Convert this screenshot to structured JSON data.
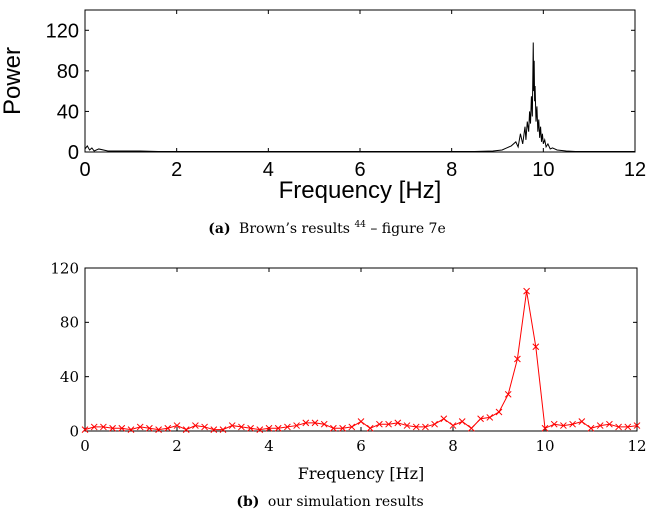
{
  "chart_data": [
    {
      "type": "line",
      "ylabel": "Power",
      "xlabel": "Frequency [Hz]",
      "xlim": [
        0,
        12
      ],
      "ylim": [
        0,
        140
      ],
      "x_ticks": [
        "0",
        "2",
        "4",
        "6",
        "8",
        "10",
        "12"
      ],
      "y_ticks": [
        "0",
        "40",
        "80",
        "120"
      ],
      "caption_label": "(a)",
      "caption_text": "Brown’s results",
      "caption_sup": "44",
      "caption_tail": " – figure 7e",
      "series": [
        {
          "color": "#000000",
          "x": [
            0.0,
            0.05,
            0.1,
            0.15,
            0.2,
            0.3,
            0.5,
            0.8,
            1.2,
            1.6,
            2.0,
            2.5,
            3.0,
            3.5,
            4.0,
            4.5,
            5.0,
            5.5,
            6.0,
            6.5,
            7.0,
            7.5,
            8.0,
            8.5,
            8.9,
            9.1,
            9.2,
            9.3,
            9.4,
            9.45,
            9.5,
            9.55,
            9.6,
            9.62,
            9.65,
            9.68,
            9.7,
            9.72,
            9.74,
            9.76,
            9.78,
            9.79,
            9.8,
            9.81,
            9.82,
            9.84,
            9.86,
            9.88,
            9.9,
            9.92,
            9.94,
            9.96,
            9.98,
            10.0,
            10.03,
            10.06,
            10.1,
            10.15,
            10.2,
            10.3,
            10.4,
            10.5,
            10.7,
            11.0,
            11.5,
            12.0
          ],
          "y": [
            3,
            6,
            2,
            4,
            1,
            3,
            1,
            1,
            1,
            0.5,
            0.5,
            0.5,
            0.5,
            0.5,
            0.5,
            0.5,
            0.5,
            0.5,
            0.5,
            0.5,
            0.5,
            0.5,
            0.5,
            0.5,
            1,
            2,
            4,
            6,
            10,
            5,
            18,
            8,
            25,
            12,
            30,
            20,
            40,
            28,
            55,
            35,
            108,
            60,
            90,
            50,
            65,
            30,
            45,
            20,
            32,
            14,
            25,
            10,
            18,
            8,
            12,
            5,
            8,
            3,
            4,
            2,
            1.5,
            1,
            0.5,
            0.5,
            0.5,
            0.5
          ]
        }
      ]
    },
    {
      "type": "line",
      "xlabel": "Frequency [Hz]",
      "xlim": [
        0,
        12
      ],
      "ylim": [
        0,
        120
      ],
      "x_ticks": [
        "0",
        "2",
        "4",
        "6",
        "8",
        "10",
        "12"
      ],
      "y_ticks": [
        "0",
        "40",
        "80",
        "120"
      ],
      "caption_label": "(b)",
      "caption_text": "our simulation results",
      "series": [
        {
          "color": "#ff0000",
          "marker": "x",
          "x": [
            0.0,
            0.2,
            0.4,
            0.6,
            0.8,
            1.0,
            1.2,
            1.4,
            1.6,
            1.8,
            2.0,
            2.2,
            2.4,
            2.6,
            2.8,
            3.0,
            3.2,
            3.4,
            3.6,
            3.8,
            4.0,
            4.2,
            4.4,
            4.6,
            4.8,
            5.0,
            5.2,
            5.4,
            5.6,
            5.8,
            6.0,
            6.2,
            6.4,
            6.6,
            6.8,
            7.0,
            7.2,
            7.4,
            7.6,
            7.8,
            8.0,
            8.2,
            8.4,
            8.6,
            8.8,
            9.0,
            9.2,
            9.4,
            9.6,
            9.8,
            10.0,
            10.2,
            10.4,
            10.6,
            10.8,
            11.0,
            11.2,
            11.4,
            11.6,
            11.8,
            12.0
          ],
          "y": [
            1,
            3,
            3,
            2,
            2,
            1,
            3,
            2,
            1,
            2,
            4,
            1,
            4,
            3,
            1,
            1,
            4,
            3,
            2,
            1,
            2,
            2,
            3,
            4,
            6,
            6,
            5,
            2,
            2,
            3,
            7,
            2,
            5,
            5,
            6,
            4,
            3,
            3,
            5,
            9,
            4,
            7,
            2,
            9,
            10,
            14,
            27,
            53,
            103,
            62,
            2,
            5,
            4,
            5,
            7,
            2,
            4,
            5,
            3,
            3,
            4
          ]
        }
      ]
    }
  ]
}
